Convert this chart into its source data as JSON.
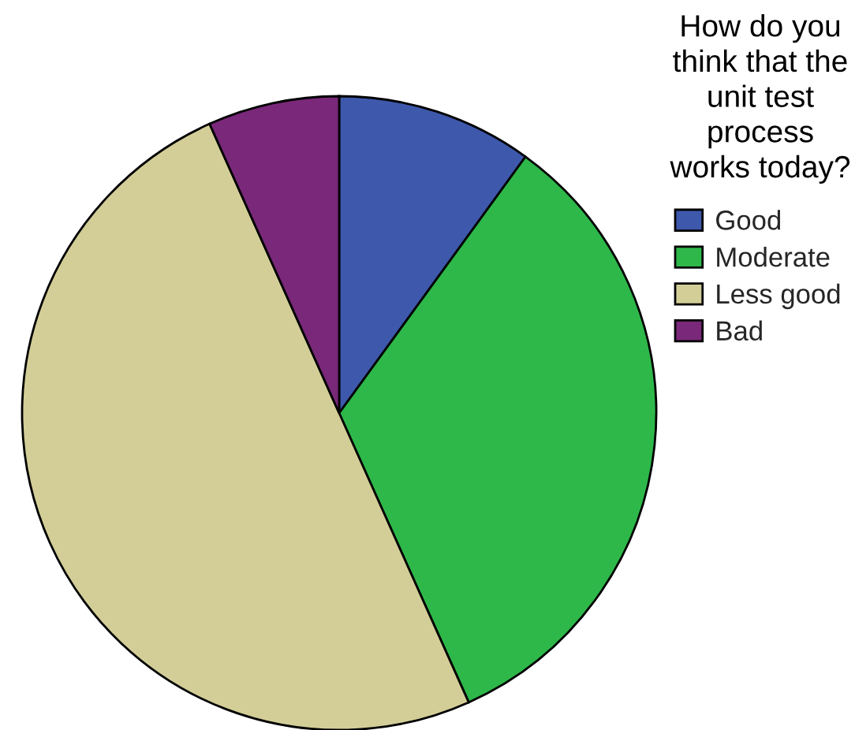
{
  "chart_data": {
    "type": "pie",
    "legend_title": "How do you think that the unit test process works today?",
    "categories": [
      "Good",
      "Moderate",
      "Less good",
      "Bad"
    ],
    "values": [
      10,
      33.3,
      50,
      6.7
    ],
    "colors": [
      "#3e58ac",
      "#2eb84a",
      "#d3ce97",
      "#7a287a"
    ],
    "legend": "top right"
  }
}
